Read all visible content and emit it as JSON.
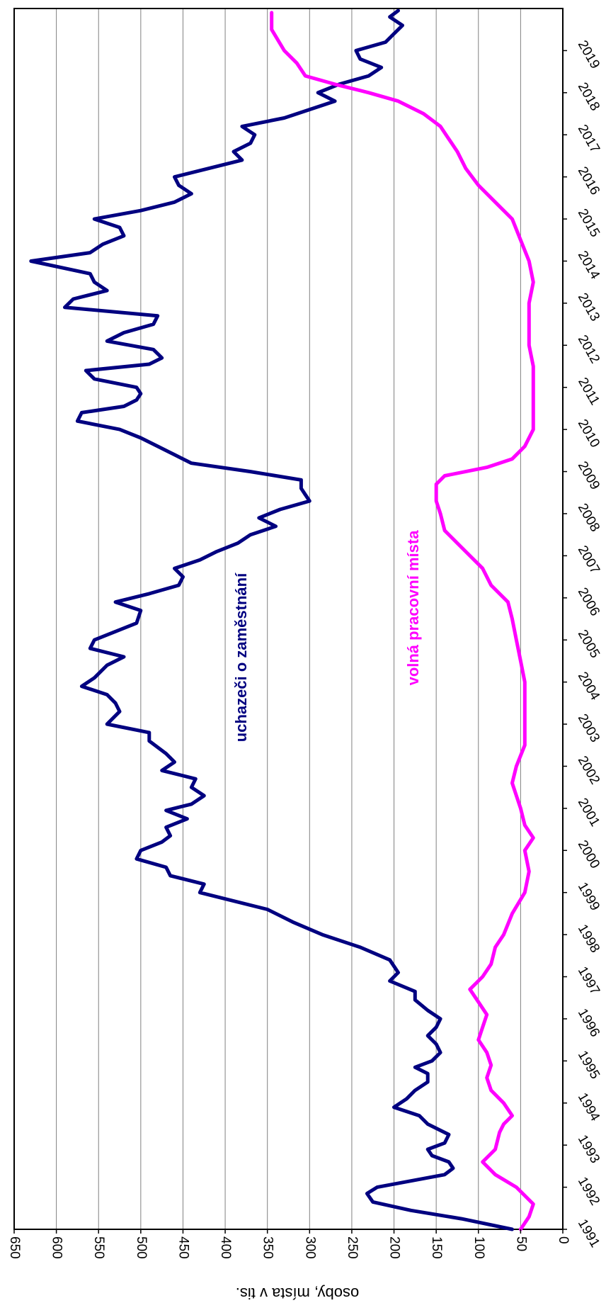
{
  "chart_data": {
    "type": "line",
    "ylabel": "osoby, místa v tis.",
    "ylim": [
      0,
      650
    ],
    "yticks": [
      650,
      600,
      550,
      500,
      450,
      400,
      350,
      300,
      250,
      200,
      150,
      100,
      50,
      0
    ],
    "xlim": [
      1991.0,
      2020.0
    ],
    "xticks": [
      "1991",
      "1992",
      "1993",
      "1994",
      "1995",
      "1996",
      "1997",
      "1998",
      "1999",
      "2000",
      "2001",
      "2002",
      "2003",
      "2004",
      "2005",
      "2006",
      "2007",
      "2008",
      "2009",
      "2010",
      "2011",
      "2012",
      "2013",
      "2014",
      "2015",
      "2016",
      "2017",
      "2018",
      "2019"
    ],
    "grid": true,
    "orientation": "rotated 90 degrees clockwise",
    "series": [
      {
        "name": "uchazeči o zaměstnání",
        "color": "#000080",
        "points": [
          [
            1991.0,
            60
          ],
          [
            1991.25,
            120
          ],
          [
            1991.45,
            180
          ],
          [
            1991.65,
            225
          ],
          [
            1991.85,
            232
          ],
          [
            1992.0,
            220
          ],
          [
            1992.15,
            180
          ],
          [
            1992.3,
            140
          ],
          [
            1992.45,
            130
          ],
          [
            1992.6,
            135
          ],
          [
            1992.75,
            155
          ],
          [
            1992.9,
            160
          ],
          [
            1993.05,
            140
          ],
          [
            1993.25,
            135
          ],
          [
            1993.5,
            160
          ],
          [
            1993.7,
            170
          ],
          [
            1993.9,
            200
          ],
          [
            1994.1,
            185
          ],
          [
            1994.3,
            175
          ],
          [
            1994.5,
            160
          ],
          [
            1994.7,
            160
          ],
          [
            1994.85,
            175
          ],
          [
            1995.0,
            155
          ],
          [
            1995.2,
            145
          ],
          [
            1995.4,
            150
          ],
          [
            1995.6,
            160
          ],
          [
            1995.8,
            150
          ],
          [
            1996.0,
            145
          ],
          [
            1996.2,
            160
          ],
          [
            1996.45,
            175
          ],
          [
            1996.65,
            175
          ],
          [
            1996.9,
            205
          ],
          [
            1997.1,
            195
          ],
          [
            1997.4,
            205
          ],
          [
            1997.7,
            240
          ],
          [
            1998.0,
            285
          ],
          [
            1998.3,
            320
          ],
          [
            1998.6,
            350
          ],
          [
            1999.0,
            430
          ],
          [
            1999.2,
            425
          ],
          [
            1999.4,
            465
          ],
          [
            1999.6,
            470
          ],
          [
            1999.8,
            505
          ],
          [
            2000.0,
            500
          ],
          [
            2000.2,
            475
          ],
          [
            2000.35,
            465
          ],
          [
            2000.55,
            470
          ],
          [
            2000.75,
            445
          ],
          [
            2000.95,
            470
          ],
          [
            2001.1,
            440
          ],
          [
            2001.3,
            425
          ],
          [
            2001.5,
            440
          ],
          [
            2001.7,
            435
          ],
          [
            2001.9,
            475
          ],
          [
            2002.1,
            460
          ],
          [
            2002.3,
            470
          ],
          [
            2002.6,
            490
          ],
          [
            2002.8,
            490
          ],
          [
            2003.0,
            540
          ],
          [
            2003.3,
            525
          ],
          [
            2003.5,
            530
          ],
          [
            2003.7,
            540
          ],
          [
            2003.9,
            570
          ],
          [
            2004.1,
            555
          ],
          [
            2004.4,
            540
          ],
          [
            2004.6,
            520
          ],
          [
            2004.8,
            560
          ],
          [
            2005.0,
            555
          ],
          [
            2005.2,
            530
          ],
          [
            2005.4,
            505
          ],
          [
            2005.7,
            500
          ],
          [
            2005.9,
            530
          ],
          [
            2006.1,
            490
          ],
          [
            2006.3,
            455
          ],
          [
            2006.5,
            450
          ],
          [
            2006.7,
            460
          ],
          [
            2006.9,
            430
          ],
          [
            2007.1,
            410
          ],
          [
            2007.3,
            385
          ],
          [
            2007.5,
            370
          ],
          [
            2007.7,
            340
          ],
          [
            2007.9,
            360
          ],
          [
            2008.1,
            335
          ],
          [
            2008.3,
            300
          ],
          [
            2008.45,
            305
          ],
          [
            2008.6,
            310
          ],
          [
            2008.8,
            310
          ],
          [
            2009.0,
            370
          ],
          [
            2009.2,
            440
          ],
          [
            2009.4,
            460
          ],
          [
            2009.6,
            480
          ],
          [
            2009.8,
            500
          ],
          [
            2010.0,
            525
          ],
          [
            2010.2,
            575
          ],
          [
            2010.4,
            570
          ],
          [
            2010.55,
            520
          ],
          [
            2010.7,
            505
          ],
          [
            2010.85,
            500
          ],
          [
            2011.0,
            505
          ],
          [
            2011.2,
            555
          ],
          [
            2011.4,
            565
          ],
          [
            2011.55,
            490
          ],
          [
            2011.7,
            475
          ],
          [
            2011.9,
            485
          ],
          [
            2012.1,
            540
          ],
          [
            2012.3,
            520
          ],
          [
            2012.5,
            485
          ],
          [
            2012.7,
            480
          ],
          [
            2012.9,
            590
          ],
          [
            2013.1,
            580
          ],
          [
            2013.3,
            540
          ],
          [
            2013.5,
            555
          ],
          [
            2013.7,
            560
          ],
          [
            2014.0,
            630
          ],
          [
            2014.2,
            560
          ],
          [
            2014.4,
            545
          ],
          [
            2014.6,
            520
          ],
          [
            2014.8,
            525
          ],
          [
            2015.0,
            555
          ],
          [
            2015.2,
            500
          ],
          [
            2015.4,
            460
          ],
          [
            2015.6,
            440
          ],
          [
            2015.8,
            455
          ],
          [
            2016.0,
            460
          ],
          [
            2016.2,
            420
          ],
          [
            2016.4,
            380
          ],
          [
            2016.6,
            390
          ],
          [
            2016.8,
            370
          ],
          [
            2017.0,
            365
          ],
          [
            2017.2,
            380
          ],
          [
            2017.4,
            330
          ],
          [
            2017.6,
            300
          ],
          [
            2017.8,
            270
          ],
          [
            2018.0,
            290
          ],
          [
            2018.2,
            265
          ],
          [
            2018.4,
            230
          ],
          [
            2018.6,
            215
          ],
          [
            2018.8,
            240
          ],
          [
            2019.0,
            245
          ],
          [
            2019.2,
            210
          ],
          [
            2019.4,
            200
          ],
          [
            2019.6,
            190
          ],
          [
            2019.8,
            205
          ],
          [
            2019.95,
            195
          ]
        ]
      },
      {
        "name": "volná pracovní místa",
        "color": "#ff00ff",
        "points": [
          [
            1991.0,
            50
          ],
          [
            1991.3,
            40
          ],
          [
            1991.6,
            35
          ],
          [
            1992.0,
            55
          ],
          [
            1992.3,
            80
          ],
          [
            1992.6,
            95
          ],
          [
            1992.9,
            80
          ],
          [
            1993.3,
            75
          ],
          [
            1993.5,
            70
          ],
          [
            1993.7,
            60
          ],
          [
            1994.0,
            70
          ],
          [
            1994.3,
            85
          ],
          [
            1994.6,
            90
          ],
          [
            1994.9,
            85
          ],
          [
            1995.2,
            90
          ],
          [
            1995.5,
            100
          ],
          [
            1995.8,
            95
          ],
          [
            1996.1,
            90
          ],
          [
            1996.4,
            100
          ],
          [
            1996.7,
            110
          ],
          [
            1997.0,
            95
          ],
          [
            1997.3,
            85
          ],
          [
            1997.7,
            80
          ],
          [
            1998.0,
            70
          ],
          [
            1998.5,
            60
          ],
          [
            1999.0,
            45
          ],
          [
            1999.5,
            40
          ],
          [
            2000.0,
            45
          ],
          [
            2000.3,
            35
          ],
          [
            2000.6,
            45
          ],
          [
            2001.0,
            50
          ],
          [
            2001.3,
            55
          ],
          [
            2001.6,
            60
          ],
          [
            2002.0,
            55
          ],
          [
            2002.5,
            45
          ],
          [
            2003.0,
            45
          ],
          [
            2003.5,
            45
          ],
          [
            2004.0,
            45
          ],
          [
            2004.5,
            50
          ],
          [
            2005.0,
            55
          ],
          [
            2005.5,
            60
          ],
          [
            2005.9,
            65
          ],
          [
            2006.3,
            85
          ],
          [
            2006.7,
            95
          ],
          [
            2007.0,
            110
          ],
          [
            2007.3,
            125
          ],
          [
            2007.6,
            140
          ],
          [
            2008.0,
            145
          ],
          [
            2008.3,
            150
          ],
          [
            2008.7,
            150
          ],
          [
            2008.9,
            140
          ],
          [
            2009.1,
            90
          ],
          [
            2009.3,
            60
          ],
          [
            2009.6,
            45
          ],
          [
            2010.0,
            35
          ],
          [
            2010.5,
            35
          ],
          [
            2011.0,
            35
          ],
          [
            2011.5,
            35
          ],
          [
            2012.0,
            40
          ],
          [
            2012.5,
            40
          ],
          [
            2013.0,
            40
          ],
          [
            2013.5,
            35
          ],
          [
            2014.0,
            40
          ],
          [
            2014.5,
            50
          ],
          [
            2015.0,
            60
          ],
          [
            2015.4,
            80
          ],
          [
            2015.8,
            100
          ],
          [
            2016.2,
            115
          ],
          [
            2016.6,
            125
          ],
          [
            2016.9,
            135
          ],
          [
            2017.2,
            145
          ],
          [
            2017.5,
            165
          ],
          [
            2017.8,
            195
          ],
          [
            2018.0,
            230
          ],
          [
            2018.2,
            270
          ],
          [
            2018.4,
            305
          ],
          [
            2018.7,
            315
          ],
          [
            2019.0,
            330
          ],
          [
            2019.5,
            345
          ],
          [
            2019.9,
            345
          ]
        ]
      }
    ]
  },
  "labels": {
    "series1": "uchazeči o zaměstnání",
    "series2": "volná pracovní místa",
    "ylabel": "osoby, místa v tis."
  }
}
